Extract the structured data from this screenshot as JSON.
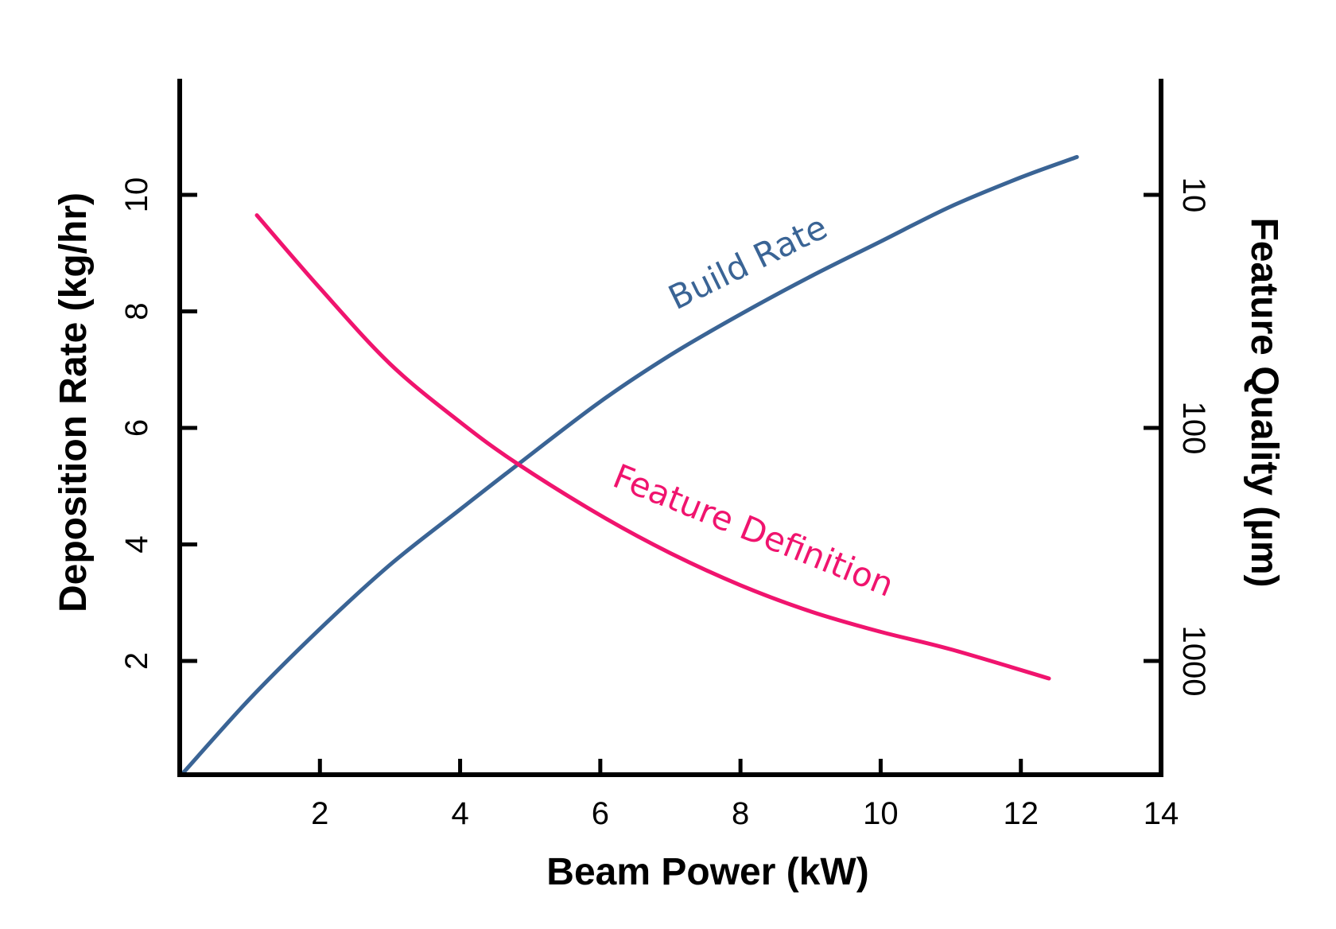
{
  "chart_data": {
    "type": "line",
    "title": "",
    "xlabel": "Beam Power (kW)",
    "ylabel": "Deposition Rate (kg/hr)",
    "y2label": "Feature Quality (µm)",
    "xlim": [
      0,
      14
    ],
    "ylim": [
      0,
      12
    ],
    "x_ticks": [
      2,
      4,
      6,
      8,
      10,
      12,
      14
    ],
    "y_ticks": [
      2,
      4,
      6,
      8,
      10
    ],
    "y2_ticks": [
      {
        "value": 10,
        "label": "10"
      },
      {
        "value": 100,
        "label": "100"
      },
      {
        "value": 1000,
        "label": "1000"
      }
    ],
    "y2_scale": "log",
    "y2_axis_anchor": {
      "left_value": 10,
      "left_at_y": 10,
      "right_value": 1000,
      "right_at_y": 2
    },
    "series": [
      {
        "name": "Build Rate",
        "color": "#3a6495",
        "axis": "left",
        "x": [
          0.05,
          1,
          2,
          3,
          4,
          4.8,
          6,
          7,
          8,
          9,
          10,
          11,
          12,
          12.8
        ],
        "y": [
          0.08,
          1.35,
          2.55,
          3.65,
          4.6,
          5.35,
          6.45,
          7.25,
          7.95,
          8.6,
          9.2,
          9.8,
          10.3,
          10.65
        ]
      },
      {
        "name": "Feature Definition",
        "color": "#f0146e",
        "axis": "left",
        "x": [
          1.1,
          2,
          3,
          4,
          4.8,
          6,
          7,
          8,
          9,
          10,
          11,
          12.4
        ],
        "y": [
          9.65,
          8.4,
          7.1,
          6.1,
          5.4,
          4.5,
          3.85,
          3.3,
          2.85,
          2.5,
          2.2,
          1.7
        ]
      }
    ],
    "annotations": [
      {
        "series": "Build Rate",
        "text": "Build Rate",
        "color": "#3a6495"
      },
      {
        "series": "Feature Definition",
        "text": "Feature Definition",
        "color": "#f0146e"
      }
    ]
  }
}
